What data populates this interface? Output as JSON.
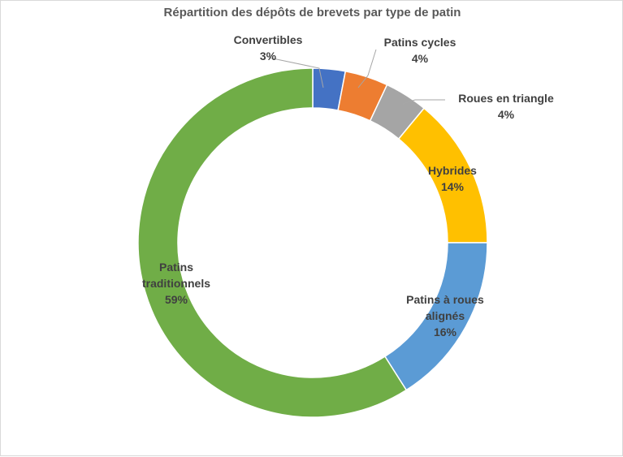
{
  "chart_data": {
    "type": "pie",
    "variant": "doughnut",
    "title": "Répartition des dépôts de brevets par type de patin",
    "legend": "none",
    "slices": [
      {
        "name": "Convertibles",
        "label_lines": [
          "Convertibles"
        ],
        "percent_label": "3%",
        "value": 3,
        "color": "#4472c4"
      },
      {
        "name": "Patins cycles",
        "label_lines": [
          "Patins cycles"
        ],
        "percent_label": "4%",
        "value": 4,
        "color": "#ed7d31"
      },
      {
        "name": "Roues en triangle",
        "label_lines": [
          "Roues en triangle"
        ],
        "percent_label": "4%",
        "value": 4,
        "color": "#a5a5a5"
      },
      {
        "name": "Hybrides",
        "label_lines": [
          "Hybrides"
        ],
        "percent_label": "14%",
        "value": 14,
        "color": "#ffc000"
      },
      {
        "name": "Patins à roues alignés",
        "label_lines": [
          "Patins à roues",
          "alignés"
        ],
        "percent_label": "16%",
        "value": 16,
        "color": "#5b9bd5"
      },
      {
        "name": "Patins traditionnels",
        "label_lines": [
          "Patins",
          "traditionnels"
        ],
        "percent_label": "59%",
        "value": 59,
        "color": "#70ad47"
      }
    ]
  }
}
